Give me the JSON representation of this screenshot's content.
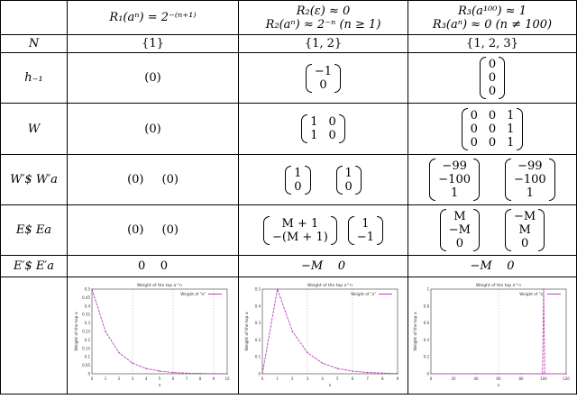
{
  "header": {
    "col1": {
      "line1": "R₁(aⁿ) = 2⁻⁽ⁿ⁺¹⁾"
    },
    "col2": {
      "line1": "R₂(ε) ≈ 0",
      "line2": "R₂(aⁿ) ≈ 2⁻ⁿ (n ≥ 1)"
    },
    "col3": {
      "line1": "R₃(a¹⁰⁰) ≈ 1",
      "line2": "R₃(aⁿ) ≈ 0 (n ≠ 100)"
    }
  },
  "rows": {
    "N": {
      "label": "N",
      "c1": "{1}",
      "c2": "{1, 2}",
      "c3": "{1, 2, 3}"
    },
    "h": {
      "label": "h₋₁",
      "c1": "(0)",
      "c2": [
        "−1",
        "0"
      ],
      "c3": [
        "0",
        "0",
        "0"
      ]
    },
    "W": {
      "label": "W",
      "c1": "(0)",
      "c2": [
        "1",
        "0",
        "1",
        "0"
      ],
      "c3": [
        "0",
        "0",
        "1",
        "0",
        "0",
        "1",
        "0",
        "0",
        "1"
      ]
    },
    "Wprime": {
      "label": "W′$   W′a",
      "c1a": "(0)",
      "c1b": "(0)",
      "c2a": [
        "1",
        "0"
      ],
      "c2b": [
        "1",
        "0"
      ],
      "c3a": [
        "−99",
        "−100",
        "1"
      ],
      "c3b": [
        "−99",
        "−100",
        "1"
      ]
    },
    "E": {
      "label": "E$   Ea",
      "c1a": "(0)",
      "c1b": "(0)",
      "c2a": [
        "M + 1",
        "−(M + 1)"
      ],
      "c2b": [
        "1",
        "−1"
      ],
      "c3a": [
        "M",
        "−M",
        "0"
      ],
      "c3b": [
        "−M",
        "M",
        "0"
      ]
    },
    "Eprime": {
      "label": "E′$   E′a",
      "c1": "0    0",
      "c2": "−M    0",
      "c3": "−M    0"
    }
  },
  "chart_data": [
    {
      "type": "line",
      "title": "Weight of the top a^n",
      "legend": "Weight of \"a\"",
      "xlabel": "n",
      "ylabel": "Weight of the top a",
      "x": [
        0,
        1,
        2,
        3,
        4,
        5,
        6,
        7,
        8,
        9,
        10
      ],
      "values": [
        0.5,
        0.25,
        0.125,
        0.0625,
        0.03125,
        0.015625,
        0.0078,
        0.0039,
        0.002,
        0.001,
        0.0005
      ],
      "xlim": [
        0,
        10
      ],
      "ylim": [
        0,
        0.5
      ],
      "ticks_x": [
        "0",
        "1",
        "2",
        "3",
        "4",
        "5",
        "6",
        "7",
        "8",
        "9",
        "10"
      ],
      "ticks_y": [
        "0",
        "0.05",
        "0.1",
        "0.15",
        "0.2",
        "0.25",
        "0.3",
        "0.35",
        "0.4",
        "0.45",
        "0.5"
      ],
      "color": "#c040c0"
    },
    {
      "type": "line",
      "title": "Weight of the top a^n",
      "legend": "Weight of \"a\"",
      "xlabel": "n",
      "ylabel": "Weight of the top a",
      "x": [
        0,
        1,
        2,
        3,
        4,
        5,
        6,
        7,
        8,
        9
      ],
      "values": [
        0.0,
        0.5,
        0.25,
        0.125,
        0.0625,
        0.03125,
        0.015625,
        0.0078,
        0.0039,
        0.002
      ],
      "xlim": [
        0,
        9
      ],
      "ylim": [
        0,
        0.5
      ],
      "ticks_x": [
        "0",
        "1",
        "2",
        "3",
        "4",
        "5",
        "6",
        "7",
        "8",
        "9"
      ],
      "ticks_y": [
        "0",
        "0.1",
        "0.2",
        "0.3",
        "0.4",
        "0.5"
      ],
      "color": "#c040c0"
    },
    {
      "type": "line",
      "title": "Weight of the top a^n",
      "legend": "Weight of \"a\"",
      "xlabel": "n",
      "ylabel": "Weight of the top a",
      "x": [
        0,
        20,
        40,
        60,
        80,
        99,
        100,
        101,
        120
      ],
      "values": [
        0.0,
        0.0,
        0.0,
        0.0,
        0.0,
        0.0,
        1.0,
        0.0,
        0.0
      ],
      "xlim": [
        0,
        120
      ],
      "ylim": [
        0,
        1
      ],
      "ticks_x": [
        "0",
        "20",
        "40",
        "60",
        "80",
        "100",
        "120"
      ],
      "ticks_y": [
        "0",
        "0.2",
        "0.4",
        "0.6",
        "0.8",
        "1"
      ],
      "color": "#c040c0"
    }
  ]
}
